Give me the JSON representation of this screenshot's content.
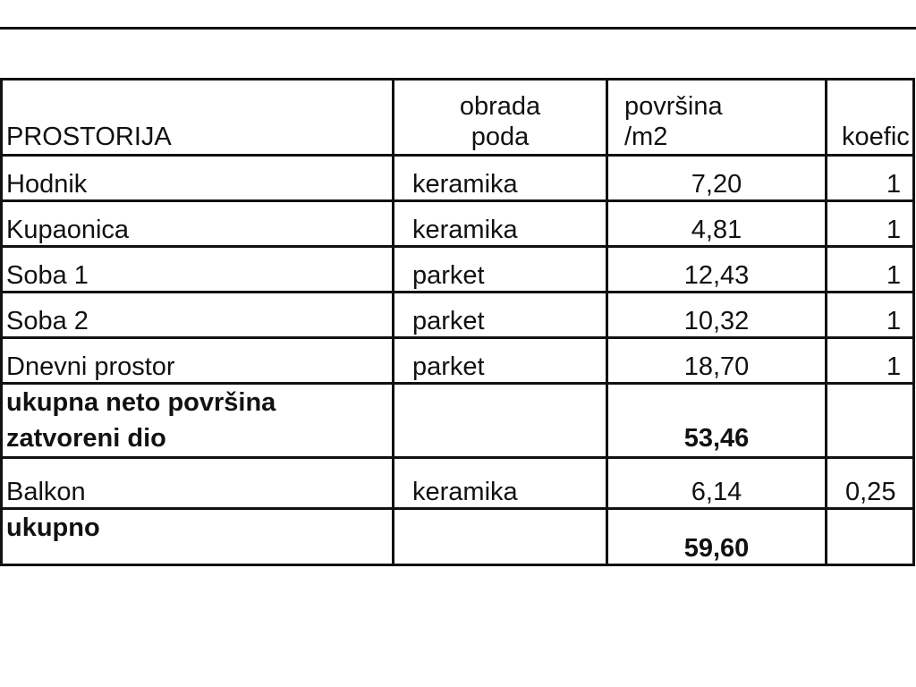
{
  "header": {
    "room": "PROSTORIJA",
    "floor_finish": [
      "obrada",
      "poda"
    ],
    "area": [
      "površina",
      "/m2"
    ],
    "coefficient": "koefic"
  },
  "rows": [
    {
      "room": "Hodnik",
      "finish": "keramika",
      "area": "7,20",
      "coef": "1"
    },
    {
      "room": "Kupaonica",
      "finish": "keramika",
      "area": "4,81",
      "coef": "1"
    },
    {
      "room": "Soba 1",
      "finish": "parket",
      "area": "12,43",
      "coef": "1"
    },
    {
      "room": "Soba 2",
      "finish": "parket",
      "area": "10,32",
      "coef": "1"
    },
    {
      "room": "Dnevni prostor",
      "finish": "parket",
      "area": "18,70",
      "coef": "1"
    }
  ],
  "subtotal": {
    "label": [
      "ukupna neto površina",
      "zatvoreni dio"
    ],
    "area": "53,46"
  },
  "balcony": {
    "room": "Balkon",
    "finish": "keramika",
    "area": "6,14",
    "coef": "0,25"
  },
  "total": {
    "label": "ukupno",
    "area": "59,60"
  }
}
